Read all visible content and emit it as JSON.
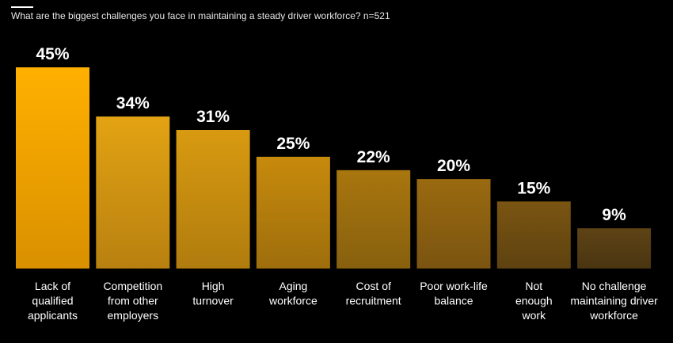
{
  "chart_data": {
    "type": "bar",
    "title": "What are the biggest challenges you face in maintaining a steady driver workforce? n=521",
    "xlabel": "",
    "ylabel": "",
    "ylim": [
      0,
      45
    ],
    "grid": false,
    "value_suffix": "%",
    "categories": [
      [
        "Lack of",
        "qualified",
        "applicants"
      ],
      [
        "Competition",
        "from other",
        "employers"
      ],
      [
        "High",
        "turnover"
      ],
      [
        "Aging",
        "workforce"
      ],
      [
        "Cost of",
        "recruitment"
      ],
      [
        "Poor work-life",
        "balance"
      ],
      [
        "Not",
        "enough",
        "work"
      ],
      [
        "No challenge",
        "maintaining driver",
        "workforce"
      ]
    ],
    "values": [
      45,
      34,
      31,
      25,
      22,
      20,
      15,
      9
    ],
    "colors": {
      "bar_top": [
        "#FFB000",
        "#E3A313",
        "#D89A10",
        "#C78A0C",
        "#A9760E",
        "#9A6A10",
        "#7A5512",
        "#5E4314"
      ],
      "bar_bottom": [
        "#D99000",
        "#B88010",
        "#B07C0E",
        "#9E6E0C",
        "#87600E",
        "#7A5410",
        "#5E4210",
        "#4A3512"
      ]
    }
  }
}
